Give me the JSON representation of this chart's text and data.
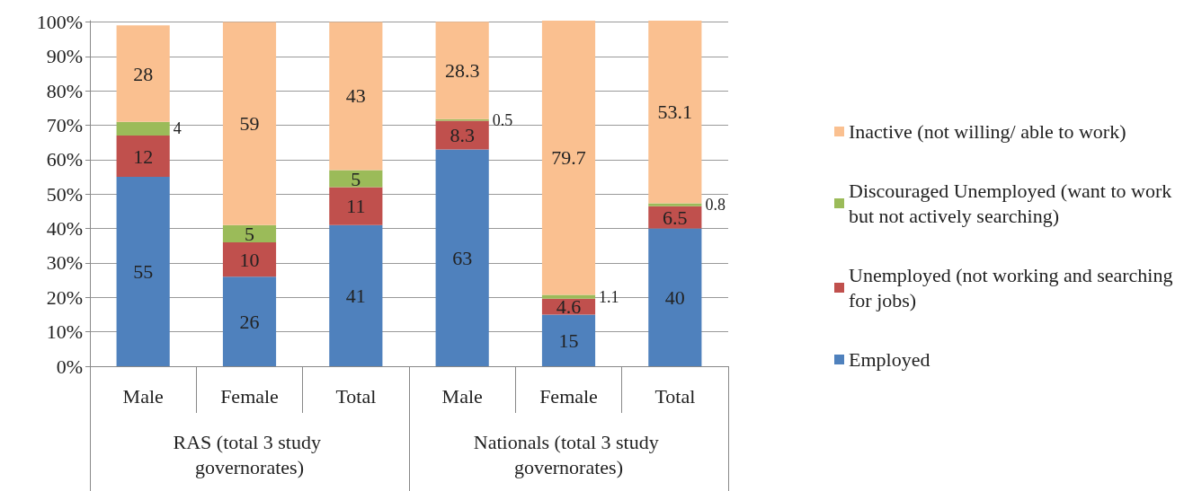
{
  "chart_data": {
    "type": "bar",
    "stacked": true,
    "categories": [
      "Male",
      "Female",
      "Total",
      "Male",
      "Female",
      "Total"
    ],
    "series": [
      {
        "name": "Employed",
        "color": "#4f81bd",
        "values": [
          55,
          26,
          41,
          63,
          15,
          40
        ]
      },
      {
        "name": "Unemployed (not working and searching for jobs)",
        "color": "#c0504d",
        "values": [
          12,
          10,
          11,
          8.3,
          4.6,
          6.5
        ]
      },
      {
        "name": "Discouraged Unemployed (want to work but not actively searching)",
        "color": "#9bbb59",
        "values": [
          4,
          5,
          5,
          0.5,
          1.1,
          0.8
        ]
      },
      {
        "name": "Inactive (not willing/ able to work)",
        "color": "#fac090",
        "values": [
          28,
          59,
          43,
          28.3,
          79.7,
          53.1
        ]
      }
    ],
    "annotations": [
      "RAS (total 3 study governorates)",
      "Nationals (total 3 study governorates)"
    ],
    "ylim": [
      0,
      100.4
    ],
    "yticks": [
      {
        "value": 0,
        "label": "0%"
      },
      {
        "value": 10,
        "label": "10%"
      },
      {
        "value": 20,
        "label": "20%"
      },
      {
        "value": 30,
        "label": "30%"
      },
      {
        "value": 40,
        "label": "40%"
      },
      {
        "value": 50,
        "label": "50%"
      },
      {
        "value": 60,
        "label": "60%"
      },
      {
        "value": 70,
        "label": "70%"
      },
      {
        "value": 80,
        "label": "80%"
      },
      {
        "value": 90,
        "label": "90%"
      },
      {
        "value": 100,
        "label": "100%"
      }
    ],
    "grid": "y",
    "legend": "right",
    "data_labels": true
  }
}
